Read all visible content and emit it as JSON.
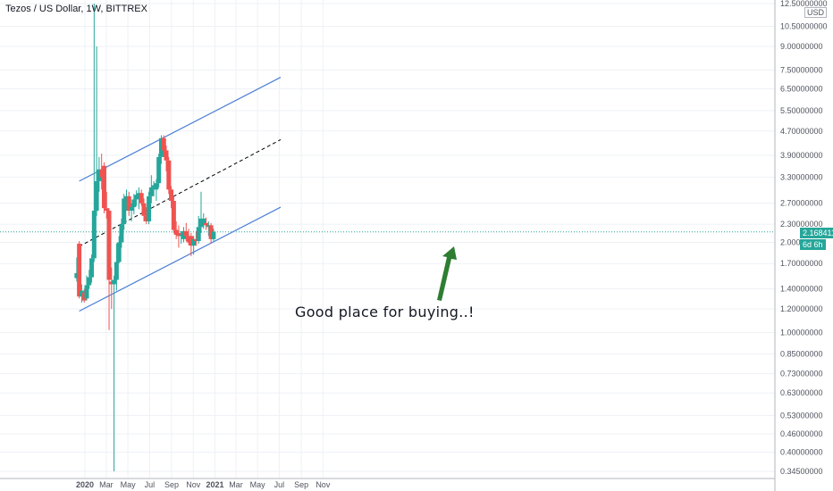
{
  "header": {
    "title": "Tezos / US Dollar, 1W, BITTREX",
    "currency": "USD"
  },
  "annotation": {
    "text": "Good place for buying..!"
  },
  "current_price": {
    "label": "2.16841114",
    "countdown": "6d 6h"
  },
  "colors": {
    "up": "#26a69a",
    "down": "#ef5350",
    "channel": "#4a7fd6",
    "midline": "#000000",
    "arrow": "#2e7d32",
    "grid": "#eef1f5"
  },
  "chart_data": {
    "type": "candlestick",
    "y_scale": "log",
    "ylim": [
      0.345,
      12.5
    ],
    "y_ticks": [
      "12.50000000",
      "10.50000000",
      "9.00000000",
      "7.50000000",
      "6.50000000",
      "5.50000000",
      "4.70000000",
      "3.90000000",
      "3.30000000",
      "2.70000000",
      "2.30000000",
      "2.00000000",
      "1.70000000",
      "1.40000000",
      "1.20000000",
      "1.00000000",
      "0.85000000",
      "0.73000000",
      "0.63000000",
      "0.53000000",
      "0.46000000",
      "0.40000000",
      "0.34500000"
    ],
    "x_ticks": [
      "2020",
      "Mar",
      "May",
      "Jul",
      "Sep",
      "Nov",
      "2021",
      "Mar",
      "May",
      "Jul",
      "Sep",
      "Nov"
    ],
    "x_tick_dates": [
      "2020-01-01",
      "2020-03-01",
      "2020-05-01",
      "2020-07-01",
      "2020-09-01",
      "2020-11-01",
      "2021-01-01",
      "2021-03-01",
      "2021-05-01",
      "2021-07-01",
      "2021-09-01",
      "2021-11-01"
    ],
    "candles": [
      {
        "t": "2019-12-09",
        "o": 1.52,
        "h": 1.78,
        "l": 1.48,
        "c": 1.58
      },
      {
        "t": "2019-12-16",
        "o": 1.98,
        "h": 2.02,
        "l": 1.3,
        "c": 1.32
      },
      {
        "t": "2019-12-23",
        "o": 1.32,
        "h": 1.45,
        "l": 1.26,
        "c": 1.38
      },
      {
        "t": "2019-12-30",
        "o": 1.36,
        "h": 1.4,
        "l": 1.26,
        "c": 1.28
      },
      {
        "t": "2020-01-06",
        "o": 1.3,
        "h": 1.55,
        "l": 1.28,
        "c": 1.44
      },
      {
        "t": "2020-01-13",
        "o": 1.44,
        "h": 1.62,
        "l": 1.4,
        "c": 1.53
      },
      {
        "t": "2020-01-20",
        "o": 1.53,
        "h": 1.82,
        "l": 1.47,
        "c": 1.77
      },
      {
        "t": "2020-01-27",
        "o": 1.77,
        "h": 12.5,
        "l": 1.72,
        "c": 2.55
      },
      {
        "t": "2020-02-03",
        "o": 2.55,
        "h": 9.0,
        "l": 2.45,
        "c": 3.2
      },
      {
        "t": "2020-02-10",
        "o": 3.2,
        "h": 3.85,
        "l": 2.95,
        "c": 3.5
      },
      {
        "t": "2020-02-17",
        "o": 3.5,
        "h": 3.95,
        "l": 3.0,
        "c": 3.3
      },
      {
        "t": "2020-02-24",
        "o": 3.6,
        "h": 3.7,
        "l": 2.5,
        "c": 2.6
      },
      {
        "t": "2020-03-02",
        "o": 2.6,
        "h": 2.95,
        "l": 2.4,
        "c": 2.55
      },
      {
        "t": "2020-03-09",
        "o": 2.55,
        "h": 2.6,
        "l": 1.02,
        "c": 1.5
      },
      {
        "t": "2020-03-16",
        "o": 1.48,
        "h": 1.65,
        "l": 1.2,
        "c": 1.45
      },
      {
        "t": "2020-03-23",
        "o": 1.45,
        "h": 1.55,
        "l": 0.345,
        "c": 1.5
      },
      {
        "t": "2020-03-30",
        "o": 1.5,
        "h": 1.98,
        "l": 1.38,
        "c": 1.72
      },
      {
        "t": "2020-04-06",
        "o": 1.72,
        "h": 2.1,
        "l": 1.7,
        "c": 2.0
      },
      {
        "t": "2020-04-13",
        "o": 2.0,
        "h": 2.4,
        "l": 1.92,
        "c": 2.3
      },
      {
        "t": "2020-04-20",
        "o": 2.3,
        "h": 2.9,
        "l": 2.2,
        "c": 2.8
      },
      {
        "t": "2020-04-27",
        "o": 2.7,
        "h": 3.0,
        "l": 2.55,
        "c": 2.85
      },
      {
        "t": "2020-05-04",
        "o": 2.85,
        "h": 2.95,
        "l": 2.45,
        "c": 2.55
      },
      {
        "t": "2020-05-11",
        "o": 2.55,
        "h": 2.7,
        "l": 2.35,
        "c": 2.62
      },
      {
        "t": "2020-05-18",
        "o": 2.62,
        "h": 2.9,
        "l": 2.48,
        "c": 2.78
      },
      {
        "t": "2020-05-25",
        "o": 2.78,
        "h": 2.98,
        "l": 2.65,
        "c": 2.88
      },
      {
        "t": "2020-06-01",
        "o": 2.82,
        "h": 3.05,
        "l": 2.58,
        "c": 2.92
      },
      {
        "t": "2020-06-08",
        "o": 2.92,
        "h": 3.0,
        "l": 2.65,
        "c": 2.7
      },
      {
        "t": "2020-06-15",
        "o": 2.7,
        "h": 2.8,
        "l": 2.35,
        "c": 2.45
      },
      {
        "t": "2020-06-22",
        "o": 2.45,
        "h": 2.62,
        "l": 2.3,
        "c": 2.35
      },
      {
        "t": "2020-06-29",
        "o": 2.35,
        "h": 2.95,
        "l": 2.3,
        "c": 2.85
      },
      {
        "t": "2020-07-06",
        "o": 2.85,
        "h": 3.35,
        "l": 2.7,
        "c": 3.05
      },
      {
        "t": "2020-07-13",
        "o": 3.05,
        "h": 3.2,
        "l": 2.85,
        "c": 3.1
      },
      {
        "t": "2020-07-20",
        "o": 3.0,
        "h": 3.25,
        "l": 2.75,
        "c": 3.15
      },
      {
        "t": "2020-07-27",
        "o": 3.15,
        "h": 3.95,
        "l": 3.05,
        "c": 3.85
      },
      {
        "t": "2020-08-03",
        "o": 3.85,
        "h": 4.55,
        "l": 3.65,
        "c": 4.45
      },
      {
        "t": "2020-08-10",
        "o": 4.45,
        "h": 4.55,
        "l": 3.85,
        "c": 4.05
      },
      {
        "t": "2020-08-17",
        "o": 4.05,
        "h": 4.2,
        "l": 3.45,
        "c": 3.75
      },
      {
        "t": "2020-08-24",
        "o": 3.75,
        "h": 3.85,
        "l": 2.9,
        "c": 3.0
      },
      {
        "t": "2020-08-31",
        "o": 3.0,
        "h": 3.08,
        "l": 2.6,
        "c": 2.75
      },
      {
        "t": "2020-09-07",
        "o": 2.75,
        "h": 2.85,
        "l": 2.15,
        "c": 2.2
      },
      {
        "t": "2020-09-14",
        "o": 2.2,
        "h": 2.35,
        "l": 2.05,
        "c": 2.12
      },
      {
        "t": "2020-09-21",
        "o": 2.15,
        "h": 2.28,
        "l": 1.92,
        "c": 2.1
      },
      {
        "t": "2020-09-28",
        "o": 2.1,
        "h": 2.18,
        "l": 1.98,
        "c": 2.12
      },
      {
        "t": "2020-10-05",
        "o": 2.05,
        "h": 2.25,
        "l": 2.0,
        "c": 2.18
      },
      {
        "t": "2020-10-12",
        "o": 2.18,
        "h": 2.32,
        "l": 2.02,
        "c": 2.1
      },
      {
        "t": "2020-10-19",
        "o": 2.1,
        "h": 2.22,
        "l": 1.96,
        "c": 2.0
      },
      {
        "t": "2020-10-26",
        "o": 2.1,
        "h": 2.15,
        "l": 1.8,
        "c": 1.95
      },
      {
        "t": "2020-11-02",
        "o": 1.95,
        "h": 2.1,
        "l": 1.82,
        "c": 2.05
      },
      {
        "t": "2020-11-09",
        "o": 2.05,
        "h": 2.18,
        "l": 1.95,
        "c": 2.02
      },
      {
        "t": "2020-11-16",
        "o": 2.02,
        "h": 2.45,
        "l": 1.98,
        "c": 2.25
      },
      {
        "t": "2020-11-23",
        "o": 2.25,
        "h": 2.95,
        "l": 2.15,
        "c": 2.4
      },
      {
        "t": "2020-11-30",
        "o": 2.3,
        "h": 2.5,
        "l": 2.22,
        "c": 2.4
      },
      {
        "t": "2020-12-07",
        "o": 2.32,
        "h": 2.42,
        "l": 2.2,
        "c": 2.28
      },
      {
        "t": "2020-12-14",
        "o": 2.25,
        "h": 2.35,
        "l": 2.1,
        "c": 2.28
      },
      {
        "t": "2020-12-21",
        "o": 2.28,
        "h": 2.32,
        "l": 1.98,
        "c": 2.05
      },
      {
        "t": "2020-12-28",
        "o": 2.05,
        "h": 2.22,
        "l": 2.02,
        "c": 2.17
      }
    ],
    "channel": {
      "upper": [
        {
          "t": "2019-12-16",
          "v": 3.2
        },
        {
          "t": "2021-07-05",
          "v": 7.1
        }
      ],
      "middle": [
        {
          "t": "2019-12-16",
          "v": 1.94
        },
        {
          "t": "2021-07-05",
          "v": 4.4
        }
      ],
      "lower": [
        {
          "t": "2019-12-16",
          "v": 1.18
        },
        {
          "t": "2021-07-05",
          "v": 2.62
        }
      ]
    },
    "current_value": 2.16841114
  }
}
